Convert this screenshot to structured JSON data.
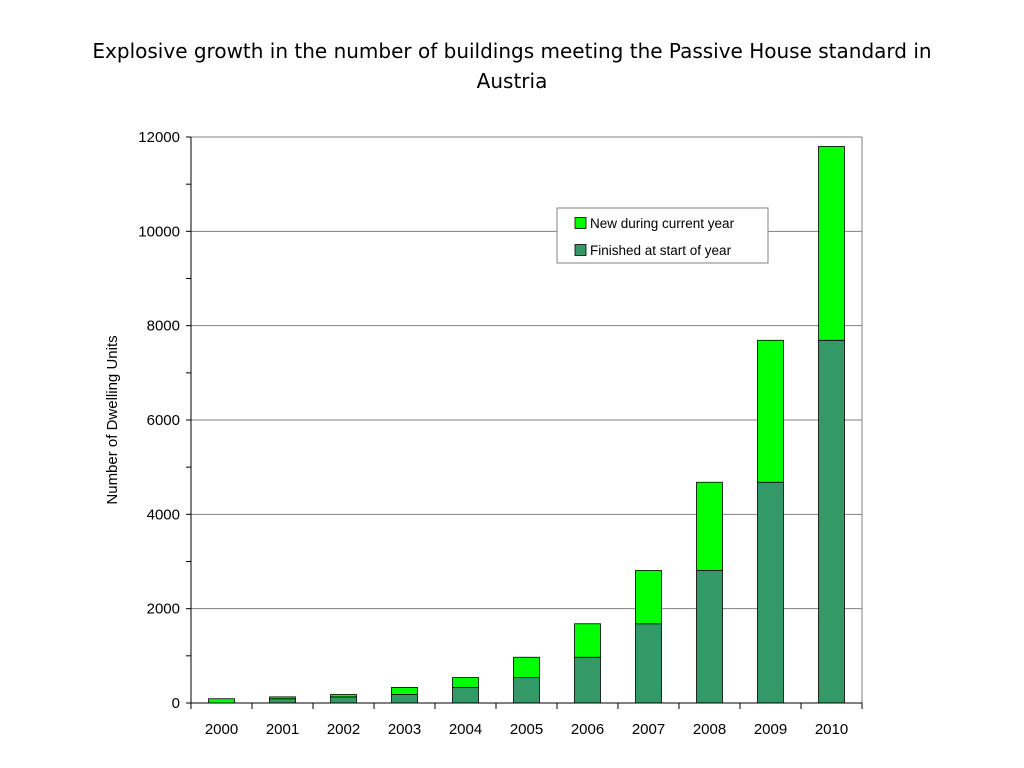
{
  "chart_data": {
    "type": "bar",
    "stacked": true,
    "title": "Explosive growth in the number of buildings meeting the Passive House standard in Austria",
    "xlabel": "",
    "ylabel": "Number of Dwelling Units",
    "ylim": [
      0,
      12000
    ],
    "yticks": [
      0,
      2000,
      4000,
      6000,
      8000,
      10000,
      12000
    ],
    "grid": true,
    "legend_position": "top-right",
    "categories": [
      "2000",
      "2001",
      "2002",
      "2003",
      "2004",
      "2005",
      "2006",
      "2007",
      "2008",
      "2009",
      "2010"
    ],
    "series": [
      {
        "name": "Finished at start of year",
        "color": "#339966",
        "values": [
          0,
          90,
          130,
          180,
          330,
          540,
          970,
          1680,
          2810,
          4680,
          7690
        ]
      },
      {
        "name": "New during current year",
        "color": "#00FF00",
        "values": [
          90,
          40,
          50,
          150,
          210,
          430,
          710,
          1130,
          1870,
          3010,
          4110
        ]
      }
    ],
    "legend_order": [
      1,
      0
    ]
  }
}
